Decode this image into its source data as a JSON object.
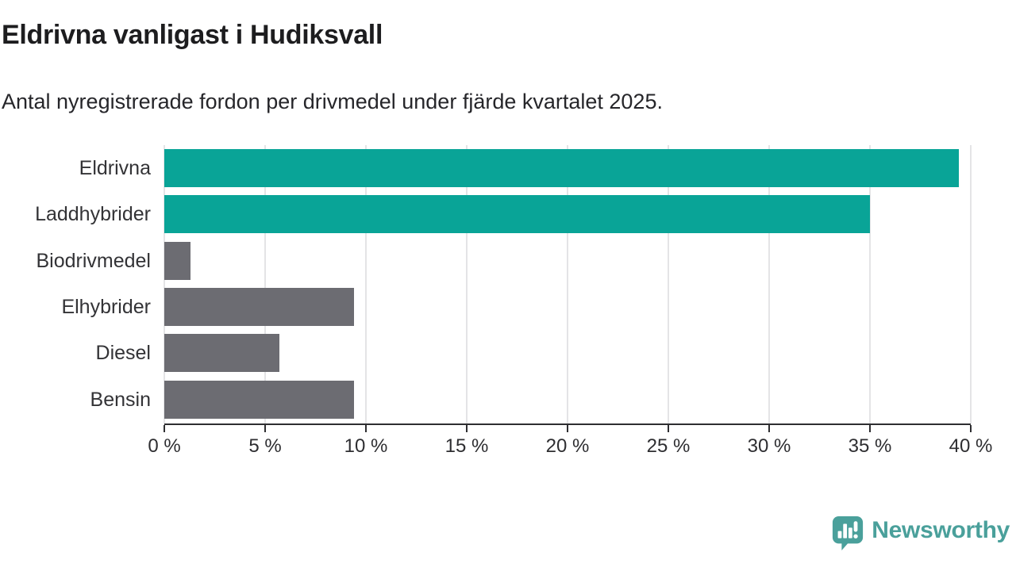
{
  "header": {
    "title": "Eldrivna vanligast i Hudiksvall",
    "subtitle": "Antal nyregistrerade fordon per drivmedel under fjärde kvartalet 2025."
  },
  "chart_data": {
    "type": "bar",
    "orientation": "horizontal",
    "title": "Eldrivna vanligast i Hudiksvall",
    "subtitle": "Antal nyregistrerade fordon per drivmedel under fjärde kvartalet 2025.",
    "categories": [
      "Eldrivna",
      "Laddhybrider",
      "Biodrivmedel",
      "Elhybrider",
      "Diesel",
      "Bensin"
    ],
    "values": [
      39.4,
      35.0,
      1.3,
      9.4,
      5.7,
      9.4
    ],
    "unit": "%",
    "bar_colors": [
      "#09a497",
      "#09a497",
      "#6c6c72",
      "#6c6c72",
      "#6c6c72",
      "#6c6c72"
    ],
    "xlim": [
      0,
      40
    ],
    "x_ticks": [
      0,
      5,
      10,
      15,
      20,
      25,
      30,
      35,
      40
    ],
    "x_tick_labels": [
      "0 %",
      "5 %",
      "10 %",
      "15 %",
      "20 %",
      "25 %",
      "30 %",
      "35 %",
      "40 %"
    ],
    "grid": true,
    "legend": "none",
    "xlabel": "",
    "ylabel": ""
  },
  "colors": {
    "highlight": "#09a497",
    "neutral": "#6c6c72",
    "axis": "#2e2e31",
    "gridline": "#e4e4e6",
    "title_text": "#1d1d1f"
  },
  "footer": {
    "brand": "Newsworthy",
    "brand_color": "#4aa09b",
    "logo_icon": "speech-bubble-bar-chart-icon"
  }
}
